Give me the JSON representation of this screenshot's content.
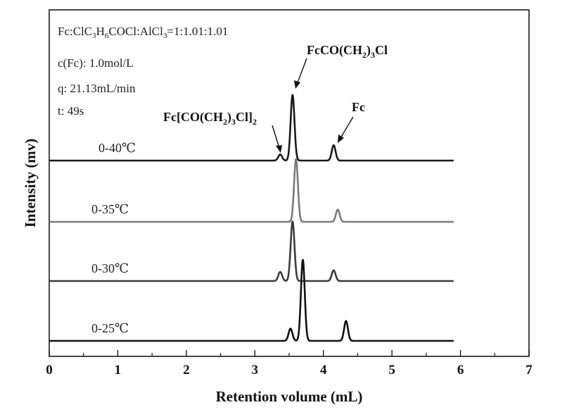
{
  "chart_data": {
    "type": "line",
    "xlabel": "Retention volume (mL)",
    "ylabel": "Intensity (mv)",
    "xlim": [
      0,
      7
    ],
    "x_ticks": [
      "0",
      "1",
      "2",
      "3",
      "4",
      "5",
      "6",
      "7"
    ],
    "y_axis_ticks": false,
    "grid": false,
    "legend": "none",
    "conditions": {
      "line1": "Fc:ClC3H6COCl:AlCl3=1:1.01:1.01",
      "line2": "c(Fc): 1.0mol/L",
      "line3": "q: 21.13mL/min",
      "line4": "t: 49s"
    },
    "peak_labels": {
      "main": "FcCO(CH2)3Cl",
      "di": "Fc[CO(CH2)3Cl]2",
      "fc": "Fc"
    },
    "series": [
      {
        "name": "0-40℃",
        "color": "#1a1a1a",
        "peaks": [
          {
            "x": 3.37,
            "height": 0.04
          },
          {
            "x": 3.55,
            "height": 0.43
          },
          {
            "x": 4.15,
            "height": 0.1
          }
        ]
      },
      {
        "name": "0-35℃",
        "color": "#7a7a7a",
        "peaks": [
          {
            "x": 3.6,
            "height": 0.41
          },
          {
            "x": 4.21,
            "height": 0.08
          }
        ]
      },
      {
        "name": "0-30℃",
        "color": "#3d3d3d",
        "peaks": [
          {
            "x": 3.37,
            "height": 0.06
          },
          {
            "x": 3.55,
            "height": 0.39
          },
          {
            "x": 4.15,
            "height": 0.07
          }
        ]
      },
      {
        "name": "0-25℃",
        "color": "#111111",
        "peaks": [
          {
            "x": 3.52,
            "height": 0.08
          },
          {
            "x": 3.7,
            "height": 0.53
          },
          {
            "x": 4.33,
            "height": 0.13
          }
        ]
      }
    ]
  }
}
